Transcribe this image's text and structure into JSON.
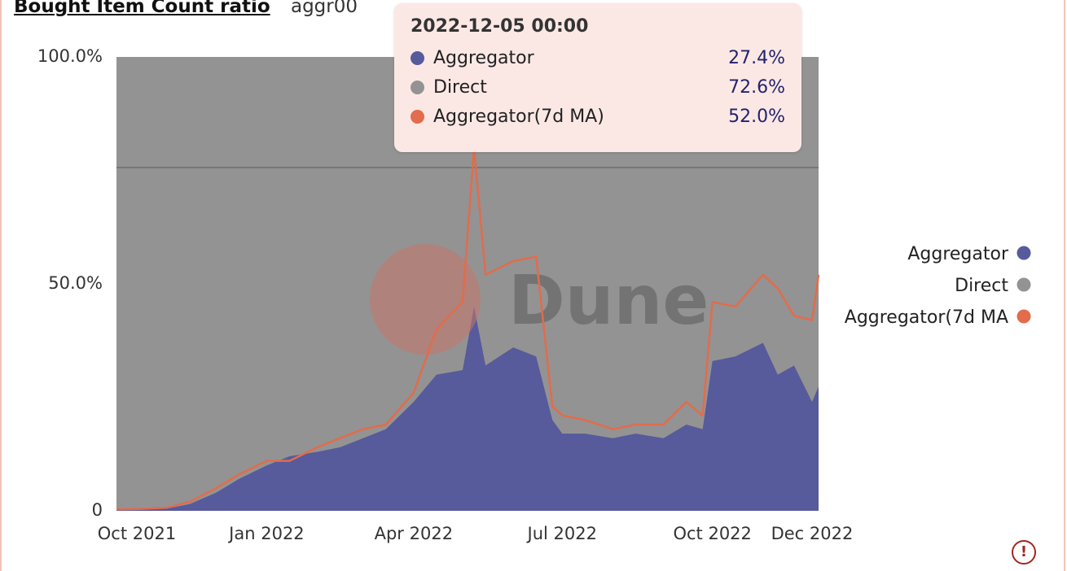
{
  "header": {
    "title": "Bought Item Count ratio",
    "subtitle": "aggr00"
  },
  "tooltip": {
    "title": "2022-12-05 00:00",
    "rows": [
      {
        "name": "Aggregator",
        "value": "27.4%",
        "color": "#575a9b"
      },
      {
        "name": "Direct",
        "value": "72.6%",
        "color": "#939393"
      },
      {
        "name": "Aggregator(7d MA)",
        "value": "52.0%",
        "color": "#e26c4b"
      }
    ]
  },
  "watermark": "Dune",
  "colors": {
    "aggregator": "#575a9b",
    "direct": "#939393",
    "ma": "#e26c4b"
  },
  "chart_data": {
    "type": "area",
    "stacked_percent": true,
    "title": "Bought Item Count ratio",
    "x_ticks": [
      "Oct 2021",
      "Jan 2022",
      "Apr 2022",
      "Jul 2022",
      "Oct 2022",
      "Dec 2022"
    ],
    "y_ticks": [
      "100.0%",
      "50.0%",
      "0"
    ],
    "ylim": [
      0,
      100
    ],
    "legend": {
      "position": "right",
      "entries": [
        "Aggregator",
        "Direct",
        "Aggregator(7d MA"
      ]
    },
    "x": [
      "2021-10-01",
      "2021-10-15",
      "2021-11-01",
      "2021-11-15",
      "2021-12-01",
      "2021-12-15",
      "2022-01-01",
      "2022-01-15",
      "2022-02-01",
      "2022-02-15",
      "2022-03-01",
      "2022-03-15",
      "2022-04-01",
      "2022-04-15",
      "2022-05-01",
      "2022-05-08",
      "2022-05-15",
      "2022-06-01",
      "2022-06-15",
      "2022-06-25",
      "2022-07-01",
      "2022-07-15",
      "2022-08-01",
      "2022-08-15",
      "2022-09-01",
      "2022-09-15",
      "2022-09-25",
      "2022-10-01",
      "2022-10-15",
      "2022-11-01",
      "2022-11-10",
      "2022-11-20",
      "2022-12-01",
      "2022-12-05"
    ],
    "series": [
      {
        "name": "Aggregator",
        "values": [
          0.2,
          0.3,
          0.5,
          1.5,
          4,
          7,
          10,
          12,
          13,
          14,
          16,
          18,
          24,
          30,
          31,
          45,
          32,
          36,
          34,
          20,
          17,
          17,
          16,
          17,
          16,
          19,
          18,
          33,
          34,
          37,
          30,
          32,
          24,
          27.4
        ]
      },
      {
        "name": "Direct",
        "values": [
          99.8,
          99.7,
          99.5,
          98.5,
          96,
          93,
          90,
          88,
          87,
          86,
          84,
          82,
          76,
          70,
          69,
          55,
          68,
          64,
          66,
          80,
          83,
          83,
          84,
          83,
          84,
          81,
          82,
          67,
          66,
          63,
          70,
          68,
          76,
          72.6
        ]
      },
      {
        "name": "Aggregator(7d MA)",
        "values": [
          0.3,
          0.4,
          0.7,
          2,
          5,
          8,
          11,
          11,
          14,
          16,
          18,
          19,
          26,
          40,
          46,
          80,
          52,
          55,
          56,
          23,
          21,
          20,
          18,
          19,
          19,
          24,
          21,
          46,
          45,
          52,
          49,
          43,
          42,
          52.0
        ]
      }
    ]
  }
}
